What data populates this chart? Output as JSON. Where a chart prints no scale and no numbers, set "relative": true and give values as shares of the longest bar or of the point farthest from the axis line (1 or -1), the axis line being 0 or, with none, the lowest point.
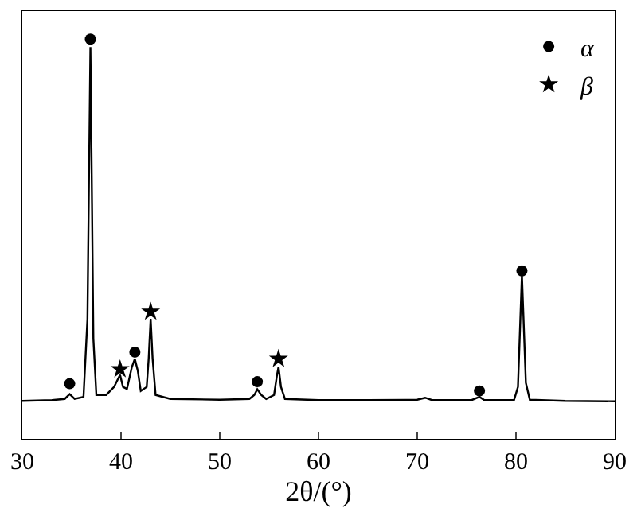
{
  "chart_data": {
    "type": "line",
    "xlabel": "2θ/(°)",
    "relative": true,
    "xlim": [
      30,
      90
    ],
    "xticks": [
      30,
      40,
      50,
      60,
      70,
      80,
      90
    ],
    "legend": "top right",
    "series": [
      {
        "color": "#000000",
        "marker": "none",
        "x": [
          30,
          33,
          34.3,
          34.8,
          35.3,
          36.2,
          36.6,
          36.9,
          37.2,
          37.5,
          38.5,
          39.3,
          39.7,
          39.9,
          40.2,
          40.6,
          41.1,
          41.4,
          41.7,
          42.0,
          42.6,
          42.8,
          43.0,
          43.2,
          43.5,
          45,
          50,
          53.0,
          53.5,
          53.8,
          54.2,
          54.7,
          55.5,
          55.8,
          55.95,
          56.2,
          56.6,
          60,
          65,
          70,
          70.8,
          71.5,
          75.5,
          76.3,
          76.8,
          79.8,
          80.2,
          80.6,
          81.0,
          81.4,
          85,
          90
        ],
        "values": [
          0.095,
          0.097,
          0.1,
          0.112,
          0.1,
          0.105,
          0.3,
          0.98,
          0.25,
          0.11,
          0.11,
          0.13,
          0.15,
          0.16,
          0.13,
          0.125,
          0.18,
          0.2,
          0.17,
          0.12,
          0.13,
          0.2,
          0.3,
          0.2,
          0.11,
          0.1,
          0.098,
          0.1,
          0.11,
          0.124,
          0.11,
          0.1,
          0.11,
          0.16,
          0.18,
          0.13,
          0.1,
          0.097,
          0.097,
          0.098,
          0.103,
          0.097,
          0.097,
          0.105,
          0.097,
          0.097,
          0.13,
          0.41,
          0.14,
          0.098,
          0.095,
          0.094
        ]
      },
      {
        "type": "scatter",
        "name": "α",
        "color": "#000000",
        "marker": "circle",
        "x": [
          34.8,
          36.9,
          41.4,
          53.8,
          76.3,
          80.6
        ],
        "values": [
          0.138,
          1.0,
          0.217,
          0.143,
          0.12,
          0.42
        ]
      },
      {
        "type": "scatter",
        "name": "β",
        "color": "#000000",
        "marker": "star",
        "x": [
          39.9,
          43.0,
          55.95
        ],
        "values": [
          0.174,
          0.318,
          0.2
        ]
      }
    ]
  }
}
